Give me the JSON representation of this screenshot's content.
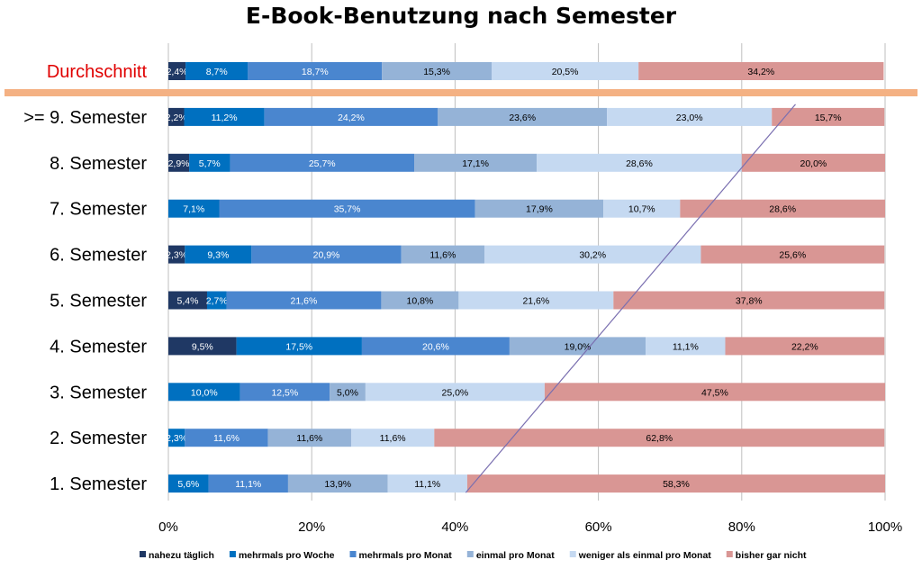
{
  "chart_data": {
    "type": "bar",
    "orientation": "horizontal",
    "stacked": true,
    "title": "E-Book-Benutzung nach Semester",
    "xlabel": "",
    "ylabel": "",
    "xlim": [
      0,
      100
    ],
    "x_ticks": [
      "0%",
      "20%",
      "40%",
      "60%",
      "80%",
      "100%"
    ],
    "grid": true,
    "legend_position": "bottom",
    "categories": [
      "Durchschnitt",
      ">= 9. Semester",
      "8. Semester",
      "7. Semester",
      "6. Semester",
      "5. Semester",
      "4. Semester",
      "3. Semester",
      "2. Semester",
      "1. Semester"
    ],
    "series": [
      {
        "name": "nahezu täglich",
        "color": "#1f3864",
        "label_color": "#ffffff",
        "values": [
          2.4,
          2.2,
          2.9,
          0,
          2.3,
          5.4,
          9.5,
          0,
          0,
          0
        ],
        "labels": [
          "2,4%",
          "2,2%",
          "2,9%",
          "",
          "2,3%",
          "5,4%",
          "9,5%",
          "",
          "",
          ""
        ]
      },
      {
        "name": "mehrmals pro Woche",
        "color": "#0070c0",
        "label_color": "#ffffff",
        "values": [
          8.7,
          11.2,
          5.7,
          7.1,
          9.3,
          2.7,
          17.5,
          10.0,
          2.3,
          5.6
        ],
        "labels": [
          "8,7%",
          "11,2%",
          "5,7%",
          "7,1%",
          "9,3%",
          "2,7%",
          "17,5%",
          "10,0%",
          "2,3%",
          "5,6%"
        ]
      },
      {
        "name": "mehrmals pro Monat",
        "color": "#4a86cf",
        "label_color": "#ffffff",
        "values": [
          18.7,
          24.2,
          25.7,
          35.7,
          20.9,
          21.6,
          20.6,
          12.5,
          11.6,
          11.1
        ],
        "labels": [
          "18,7%",
          "24,2%",
          "25,7%",
          "35,7%",
          "20,9%",
          "21,6%",
          "20,6%",
          "12,5%",
          "11,6%",
          "11,1%"
        ]
      },
      {
        "name": "einmal pro Monat",
        "color": "#95b3d7",
        "label_color": "#000000",
        "values": [
          15.3,
          23.6,
          17.1,
          17.9,
          11.6,
          10.8,
          19.0,
          5.0,
          11.6,
          13.9
        ],
        "labels": [
          "15,3%",
          "23,6%",
          "17,1%",
          "17,9%",
          "11,6%",
          "10,8%",
          "19,0%",
          "5,0%",
          "11,6%",
          "13,9%"
        ]
      },
      {
        "name": "weniger als einmal pro Monat",
        "color": "#c5d9f1",
        "label_color": "#000000",
        "values": [
          20.5,
          23.0,
          28.6,
          10.7,
          30.2,
          21.6,
          11.1,
          25.0,
          11.6,
          11.1
        ],
        "labels": [
          "20,5%",
          "23,0%",
          "28,6%",
          "10,7%",
          "30,2%",
          "21,6%",
          "11,1%",
          "25,0%",
          "11,6%",
          "11,1%"
        ]
      },
      {
        "name": "bisher gar nicht",
        "color": "#d99694",
        "label_color": "#000000",
        "values": [
          34.2,
          15.7,
          20.0,
          28.6,
          25.6,
          37.8,
          22.2,
          47.5,
          62.8,
          58.3
        ],
        "labels": [
          "34,2%",
          "15,7%",
          "20,0%",
          "28,6%",
          "25,6%",
          "37,8%",
          "22,2%",
          "47,5%",
          "62,8%",
          "58,3%"
        ]
      }
    ],
    "annotations": {
      "separator_color": "#f4b183",
      "trend_line": {
        "color": "#7a6fb0",
        "from": {
          "category": "1. Semester",
          "x": 41.5
        },
        "to": {
          "category": ">= 9. Semester",
          "x": 87.5
        }
      }
    }
  }
}
